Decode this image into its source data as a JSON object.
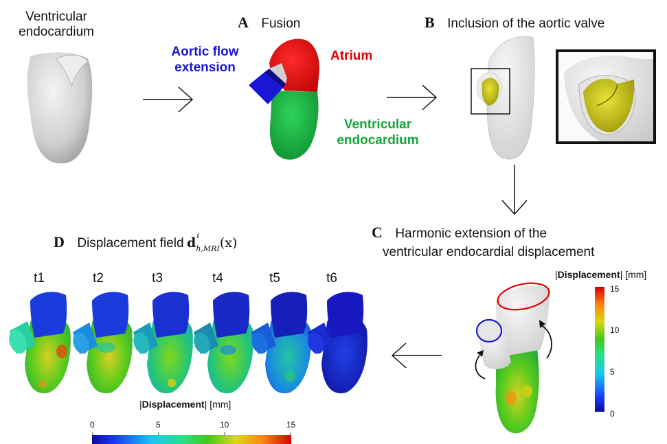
{
  "ventricular_label": [
    "Ventricular",
    "endocardium"
  ],
  "panelA": {
    "letter": "A",
    "title": "Fusion"
  },
  "aortic_label": [
    "Aortic flow",
    "extension"
  ],
  "atrium_label": "Atrium",
  "endo_label": [
    "Ventricular",
    "endocardium"
  ],
  "panelB": {
    "letter": "B",
    "title": "Inclusion of the aortic valve"
  },
  "panelC": {
    "letter": "C",
    "title_lines": [
      "Harmonic extension of the",
      "ventricular endocardial displacement"
    ]
  },
  "panelD": {
    "letter": "D",
    "title_prefix": "Displacement field",
    "symbol": "d",
    "sup": "i",
    "sub": "h,MRI",
    "arg": "(x)"
  },
  "timepoints": [
    "t1",
    "t2",
    "t3",
    "t4",
    "t5",
    "t6"
  ],
  "colorbar_label": {
    "pipe_open": "|",
    "bold": "Displacement",
    "pipe_close": "|",
    "unit": "[mm]"
  },
  "colorbar_ticks": [
    "0",
    "5",
    "10",
    "15"
  ],
  "colors": {
    "aortic_blue": "#1a16d6",
    "atrium_red": "#e00000",
    "endo_green": "#14a83a",
    "mesh_gray": "#b9b9b9",
    "valve_yellow": "#c9c400"
  }
}
